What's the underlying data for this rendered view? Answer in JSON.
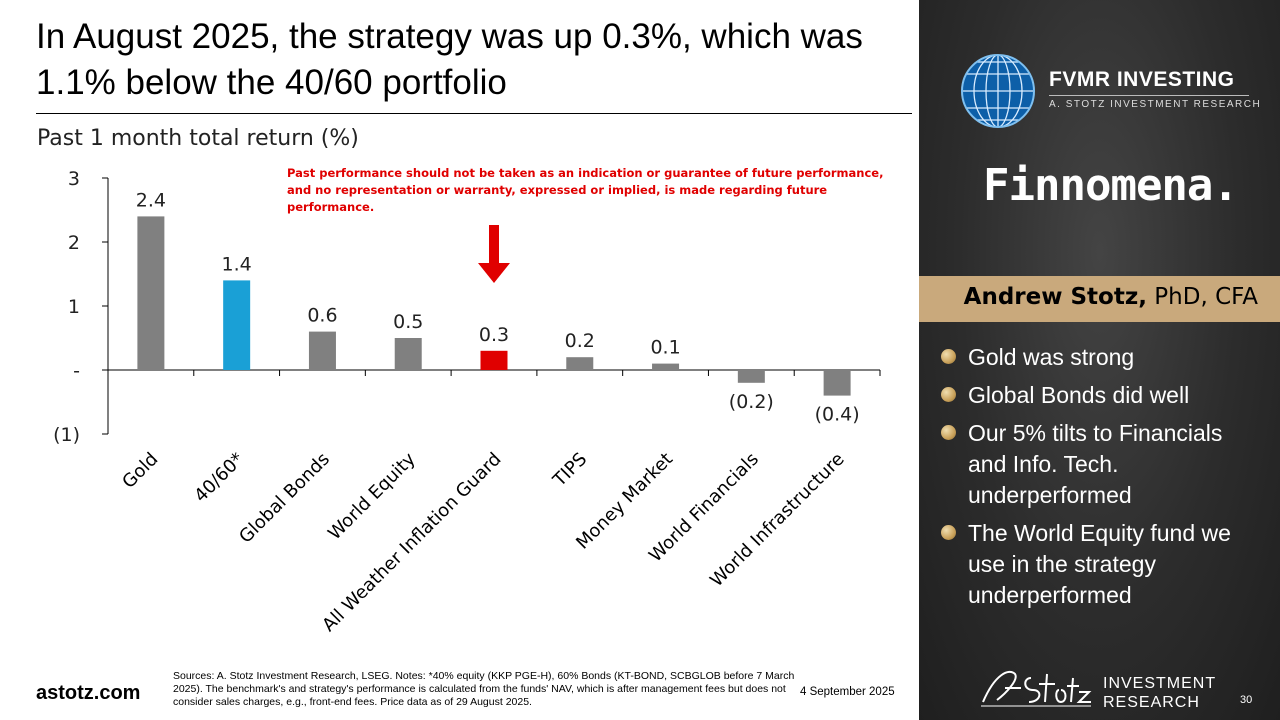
{
  "slide": {
    "title": "In August 2025, the strategy was up 0.3%, which was 1.1% below the 40/60 portfolio",
    "site": "astotz.com",
    "sources": "Sources: A. Stotz Investment Research, LSEG. Notes: *40% equity (KKP PGE-H), 60% Bonds (KT-BOND, SCBGLOB before 7 March 2025). The benchmark's and strategy's performance is calculated from the funds' NAV, which is after management fees but does not consider sales charges, e.g., front-end fees. Price data as of 29 August 2025.",
    "date": "4 September 2025",
    "page_number": "30"
  },
  "chart_data": {
    "type": "bar",
    "title": "Past 1 month total return (%)",
    "disclaimer": "Past performance should not be taken as an indication or guarantee of future performance, and no representation or warranty, expressed or implied, is made regarding future performance.",
    "categories": [
      "Gold",
      "40/60*",
      "Global Bonds",
      "World Equity",
      "All Weather Inflation Guard",
      "TIPS",
      "Money Market",
      "World Financials",
      "World Infrastructure"
    ],
    "values": [
      2.4,
      1.4,
      0.6,
      0.5,
      0.3,
      0.2,
      0.1,
      -0.2,
      -0.4
    ],
    "data_labels": [
      "2.4",
      "1.4",
      "0.6",
      "0.5",
      "0.3",
      "0.2",
      "0.1",
      "(0.2)",
      "(0.4)"
    ],
    "colors": [
      "#808080",
      "#1aa0d6",
      "#808080",
      "#808080",
      "#e00000",
      "#808080",
      "#808080",
      "#808080",
      "#808080"
    ],
    "ylim": [
      -1,
      3
    ],
    "yticks": [
      3,
      2,
      1,
      0,
      -1
    ],
    "ytick_labels": [
      "3",
      "2",
      "1",
      "-",
      "(1)"
    ],
    "highlight_arrow_category": "All Weather Inflation Guard",
    "arrow_color": "#e00000",
    "grid": false,
    "legend": "none"
  },
  "panel": {
    "brand_name": "FVMR INVESTING",
    "brand_sub": "A. STOTZ INVESTMENT RESEARCH",
    "partner": "Finnomena.",
    "author_name": "Andrew Stotz,",
    "author_credentials": " PhD, CFA",
    "bullets": [
      "Gold was strong",
      "Global Bonds did well",
      "Our 5% tilts to Financials and  Info. Tech. underperformed",
      "The World Equity fund we use in the strategy underperformed"
    ],
    "footer_logo_line1": "INVESTMENT",
    "footer_logo_line2": "RESEARCH"
  }
}
